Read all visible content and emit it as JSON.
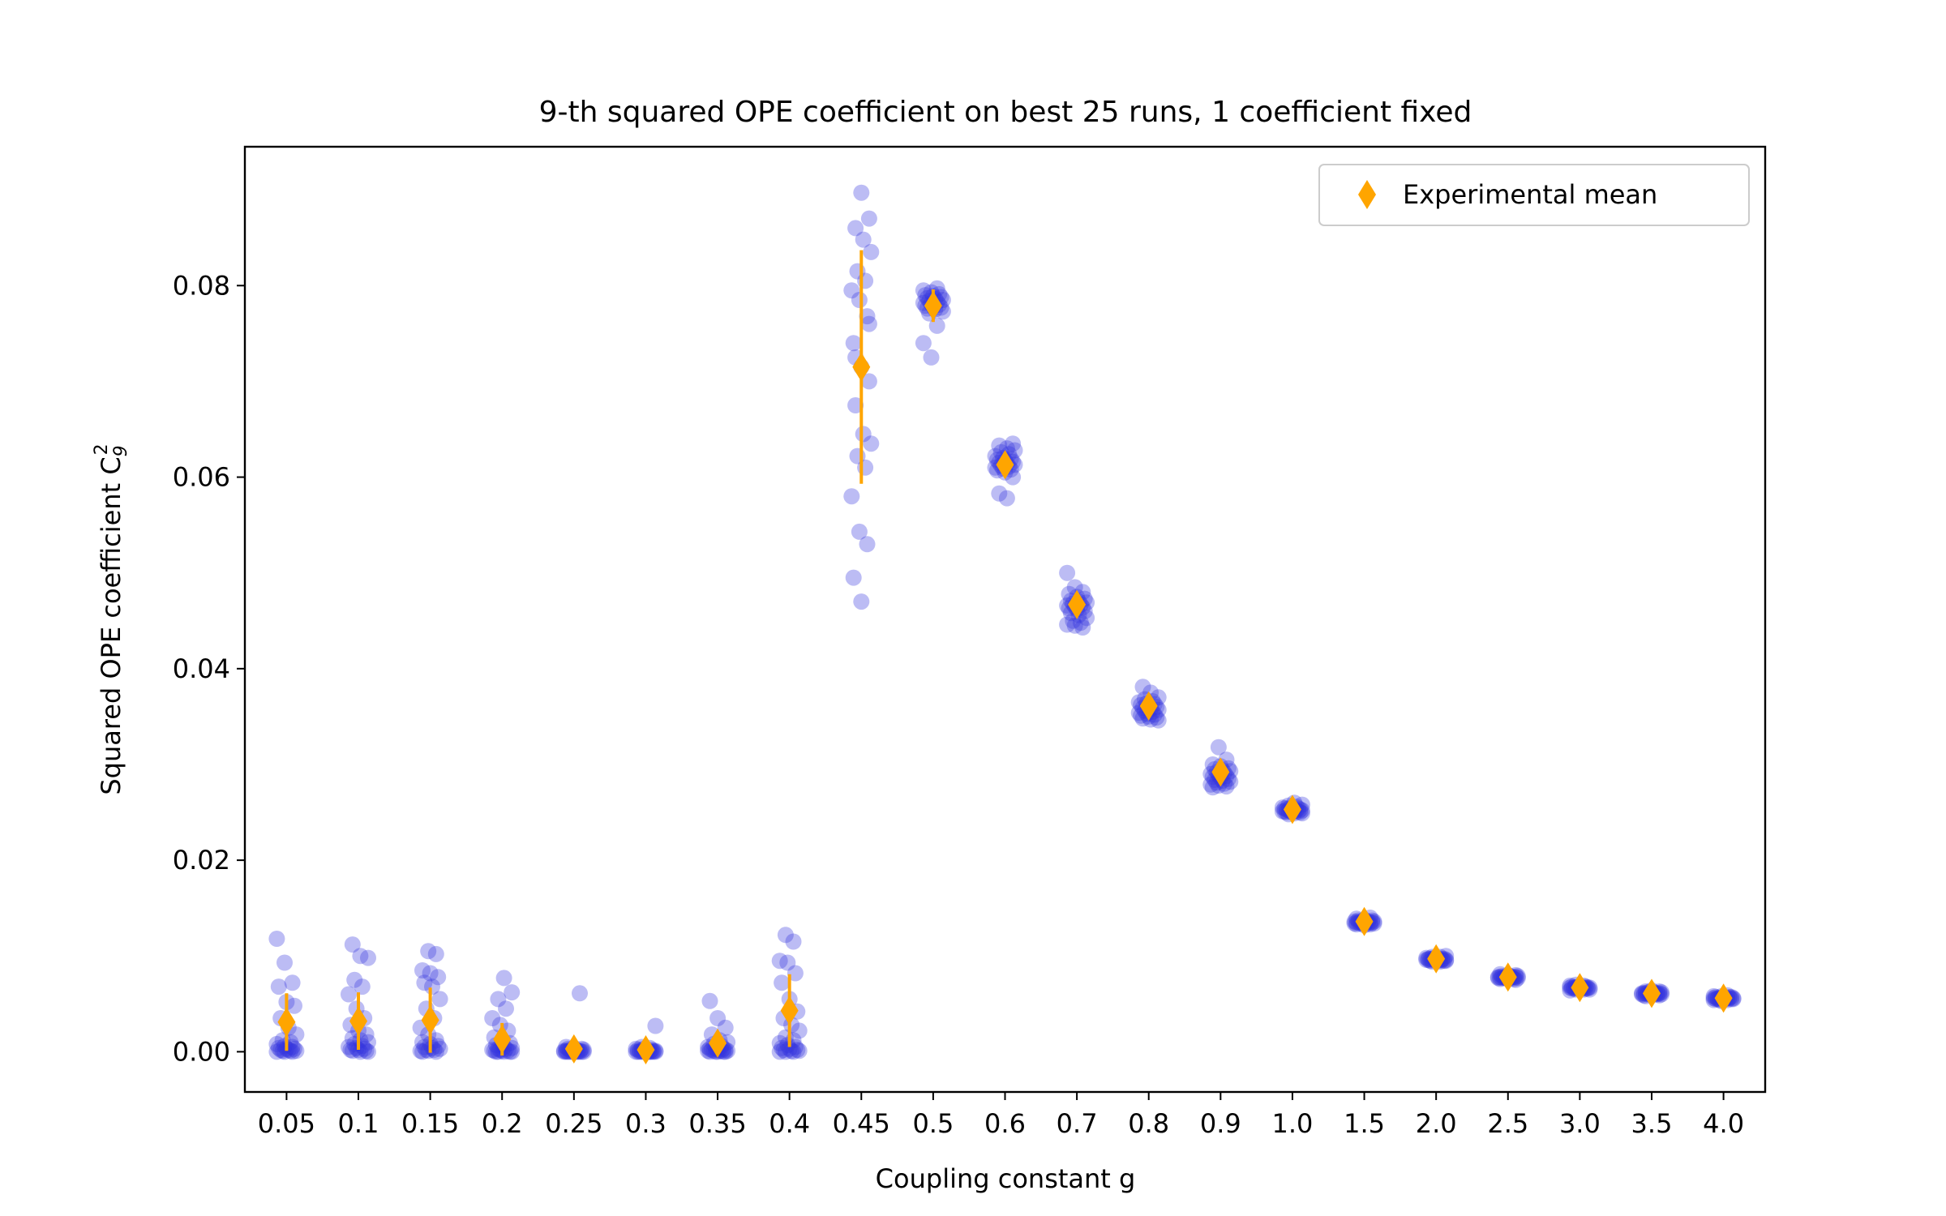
{
  "chart_data": {
    "type": "scatter",
    "title": "9-th squared OPE coefficient on best 25 runs, 1 coefficient fixed",
    "xlabel": "Coupling constant g",
    "ylabel": "Squared OPE coefficient C",
    "ylabel_sub": "9",
    "ylabel_sup": "2",
    "ylim": [
      -0.0042,
      0.0945
    ],
    "yticks": [
      0.0,
      0.02,
      0.04,
      0.06,
      0.08
    ],
    "ytick_labels": [
      "0.00",
      "0.02",
      "0.04",
      "0.06",
      "0.08"
    ],
    "categories": [
      "0.05",
      "0.1",
      "0.15",
      "0.2",
      "0.25",
      "0.3",
      "0.35",
      "0.4",
      "0.45",
      "0.5",
      "0.6",
      "0.7",
      "0.8",
      "0.9",
      "1.0",
      "1.5",
      "2.0",
      "2.5",
      "3.0",
      "3.5",
      "4.0"
    ],
    "legend": {
      "label": "Experimental mean",
      "placement": "upper right"
    },
    "colors": {
      "runs": "#3333dd",
      "mean": "#ffa500"
    },
    "grid": false,
    "series": [
      {
        "name": "Experimental mean",
        "values": [
          0.0031,
          0.0032,
          0.0033,
          0.0013,
          0.0003,
          0.0002,
          0.0009,
          0.0043,
          0.0715,
          0.0779,
          0.0613,
          0.0467,
          0.0361,
          0.0292,
          0.0253,
          0.0136,
          0.0097,
          0.0078,
          0.0067,
          0.0061,
          0.0056
        ],
        "error": [
          0.003,
          0.003,
          0.0034,
          0.0017,
          0.0004,
          0.0004,
          0.0008,
          0.0038,
          0.0122,
          0.0017,
          0.0011,
          0.0011,
          0.0008,
          0.0008,
          0.0004,
          0.0003,
          0.0002,
          0.0002,
          0.0002,
          0.0002,
          0.0002
        ]
      }
    ],
    "runs": [
      [
        0.0118,
        0.0093,
        0.0072,
        0.0068,
        0.0052,
        0.0048,
        0.0035,
        0.0025,
        0.0018,
        0.0012,
        0.001,
        0.0008,
        0.0006,
        0.0005,
        0.0004,
        0.0003,
        0.0003,
        0.0002,
        0.0002,
        0.0001,
        0.0001,
        0.0001,
        0.0,
        0.0,
        0.0
      ],
      [
        0.0112,
        0.01,
        0.0098,
        0.0075,
        0.0068,
        0.006,
        0.0045,
        0.0035,
        0.0028,
        0.0022,
        0.0018,
        0.0014,
        0.0012,
        0.001,
        0.0008,
        0.0006,
        0.0005,
        0.0004,
        0.0003,
        0.0002,
        0.0002,
        0.0001,
        0.0001,
        0.0,
        0.0
      ],
      [
        0.0105,
        0.0102,
        0.0085,
        0.0082,
        0.0078,
        0.0072,
        0.0068,
        0.0055,
        0.0045,
        0.0035,
        0.0025,
        0.0018,
        0.0012,
        0.001,
        0.0008,
        0.0006,
        0.0005,
        0.0004,
        0.0003,
        0.0002,
        0.0002,
        0.0001,
        0.0001,
        0.0,
        0.0
      ],
      [
        0.0077,
        0.0062,
        0.0055,
        0.0045,
        0.0035,
        0.0028,
        0.0022,
        0.0015,
        0.0012,
        0.0009,
        0.0007,
        0.0005,
        0.0004,
        0.0003,
        0.0003,
        0.0002,
        0.0002,
        0.0001,
        0.0001,
        0.0001,
        0.0,
        0.0,
        0.0,
        0.0,
        0.0
      ],
      [
        0.0061,
        0.0005,
        0.0004,
        0.0003,
        0.0003,
        0.0002,
        0.0002,
        0.0002,
        0.0001,
        0.0001,
        0.0001,
        0.0001,
        0.0001,
        0.0001,
        0.0,
        0.0,
        0.0,
        0.0,
        0.0,
        0.0,
        0.0,
        0.0,
        0.0,
        0.0,
        0.0
      ],
      [
        0.0027,
        0.0005,
        0.0004,
        0.0003,
        0.0003,
        0.0002,
        0.0002,
        0.0002,
        0.0001,
        0.0001,
        0.0001,
        0.0001,
        0.0001,
        0.0,
        0.0,
        0.0,
        0.0,
        0.0,
        0.0,
        0.0,
        0.0,
        0.0,
        0.0,
        0.0,
        0.0
      ],
      [
        0.0053,
        0.0035,
        0.0025,
        0.0018,
        0.0012,
        0.001,
        0.0008,
        0.0006,
        0.0005,
        0.0004,
        0.0003,
        0.0003,
        0.0002,
        0.0002,
        0.0002,
        0.0001,
        0.0001,
        0.0001,
        0.0001,
        0.0001,
        0.0,
        0.0,
        0.0,
        0.0,
        0.0
      ],
      [
        0.0122,
        0.0115,
        0.0095,
        0.0093,
        0.0082,
        0.0072,
        0.0055,
        0.0042,
        0.0035,
        0.0028,
        0.0022,
        0.0015,
        0.0012,
        0.0009,
        0.0007,
        0.0005,
        0.0004,
        0.0003,
        0.0002,
        0.0002,
        0.0001,
        0.0001,
        0.0,
        0.0,
        0.0
      ],
      [
        0.0897,
        0.087,
        0.086,
        0.0848,
        0.0835,
        0.0815,
        0.0805,
        0.0795,
        0.0785,
        0.0768,
        0.074,
        0.0715,
        0.07,
        0.0675,
        0.0645,
        0.0635,
        0.0622,
        0.061,
        0.058,
        0.0543,
        0.053,
        0.0495,
        0.047,
        0.076,
        0.0725
      ],
      [
        0.0797,
        0.0795,
        0.0793,
        0.0791,
        0.079,
        0.0789,
        0.0788,
        0.0787,
        0.0786,
        0.0785,
        0.0784,
        0.0783,
        0.0782,
        0.0781,
        0.078,
        0.0779,
        0.0778,
        0.0777,
        0.0776,
        0.0775,
        0.0773,
        0.0771,
        0.0758,
        0.074,
        0.0725
      ],
      [
        0.0635,
        0.0633,
        0.063,
        0.0628,
        0.0626,
        0.0624,
        0.0622,
        0.062,
        0.0619,
        0.0618,
        0.0617,
        0.0616,
        0.0615,
        0.0614,
        0.0613,
        0.0612,
        0.0611,
        0.061,
        0.0609,
        0.0608,
        0.0607,
        0.0605,
        0.06,
        0.0583,
        0.0578
      ],
      [
        0.05,
        0.0485,
        0.048,
        0.0478,
        0.0475,
        0.0473,
        0.0471,
        0.047,
        0.0469,
        0.0468,
        0.0467,
        0.0466,
        0.0465,
        0.0464,
        0.0463,
        0.0462,
        0.046,
        0.0458,
        0.0456,
        0.0453,
        0.045,
        0.0448,
        0.0446,
        0.0445,
        0.0443
      ],
      [
        0.0381,
        0.0375,
        0.037,
        0.0368,
        0.0366,
        0.0365,
        0.0364,
        0.0363,
        0.0362,
        0.0361,
        0.036,
        0.0359,
        0.0358,
        0.0357,
        0.0356,
        0.0355,
        0.0354,
        0.0353,
        0.0352,
        0.0351,
        0.035,
        0.0349,
        0.0348,
        0.0347,
        0.0346
      ],
      [
        0.0318,
        0.0305,
        0.03,
        0.0298,
        0.0296,
        0.0295,
        0.0294,
        0.0293,
        0.0292,
        0.0291,
        0.029,
        0.0289,
        0.0288,
        0.0287,
        0.0286,
        0.0285,
        0.0284,
        0.0283,
        0.0282,
        0.0281,
        0.028,
        0.0279,
        0.0278,
        0.0277,
        0.0276
      ],
      [
        0.026,
        0.0258,
        0.0257,
        0.0256,
        0.0255,
        0.0255,
        0.0254,
        0.0254,
        0.0253,
        0.0253,
        0.0253,
        0.0252,
        0.0252,
        0.0252,
        0.0252,
        0.0251,
        0.0251,
        0.0251,
        0.0251,
        0.025,
        0.025,
        0.025,
        0.0249,
        0.0249,
        0.0248
      ],
      [
        0.014,
        0.0139,
        0.0138,
        0.0137,
        0.0137,
        0.0136,
        0.0136,
        0.0136,
        0.0136,
        0.0136,
        0.0135,
        0.0135,
        0.0135,
        0.0135,
        0.0135,
        0.0135,
        0.0135,
        0.0134,
        0.0134,
        0.0134,
        0.0134,
        0.0134,
        0.0133,
        0.0133,
        0.0132
      ],
      [
        0.01,
        0.0099,
        0.0099,
        0.0098,
        0.0098,
        0.0097,
        0.0097,
        0.0097,
        0.0097,
        0.0097,
        0.0097,
        0.0096,
        0.0096,
        0.0096,
        0.0096,
        0.0096,
        0.0096,
        0.0096,
        0.0096,
        0.0095,
        0.0095,
        0.0095,
        0.0095,
        0.0094,
        0.0094
      ],
      [
        0.0081,
        0.008,
        0.008,
        0.0079,
        0.0079,
        0.0079,
        0.0078,
        0.0078,
        0.0078,
        0.0078,
        0.0078,
        0.0078,
        0.0078,
        0.0078,
        0.0077,
        0.0077,
        0.0077,
        0.0077,
        0.0077,
        0.0077,
        0.0077,
        0.0076,
        0.0076,
        0.0076,
        0.0075
      ],
      [
        0.007,
        0.0069,
        0.0069,
        0.0068,
        0.0068,
        0.0068,
        0.0068,
        0.0067,
        0.0067,
        0.0067,
        0.0067,
        0.0067,
        0.0067,
        0.0067,
        0.0067,
        0.0066,
        0.0066,
        0.0066,
        0.0066,
        0.0066,
        0.0066,
        0.0065,
        0.0065,
        0.0065,
        0.0064
      ],
      [
        0.0064,
        0.0063,
        0.0063,
        0.0062,
        0.0062,
        0.0062,
        0.0061,
        0.0061,
        0.0061,
        0.0061,
        0.0061,
        0.0061,
        0.0061,
        0.0061,
        0.0061,
        0.006,
        0.006,
        0.006,
        0.006,
        0.006,
        0.006,
        0.0059,
        0.0059,
        0.0059,
        0.0058
      ],
      [
        0.0059,
        0.0058,
        0.0058,
        0.0057,
        0.0057,
        0.0057,
        0.0057,
        0.0056,
        0.0056,
        0.0056,
        0.0056,
        0.0056,
        0.0056,
        0.0056,
        0.0056,
        0.0055,
        0.0055,
        0.0055,
        0.0055,
        0.0055,
        0.0055,
        0.0054,
        0.0054,
        0.0054,
        0.0053
      ]
    ]
  }
}
